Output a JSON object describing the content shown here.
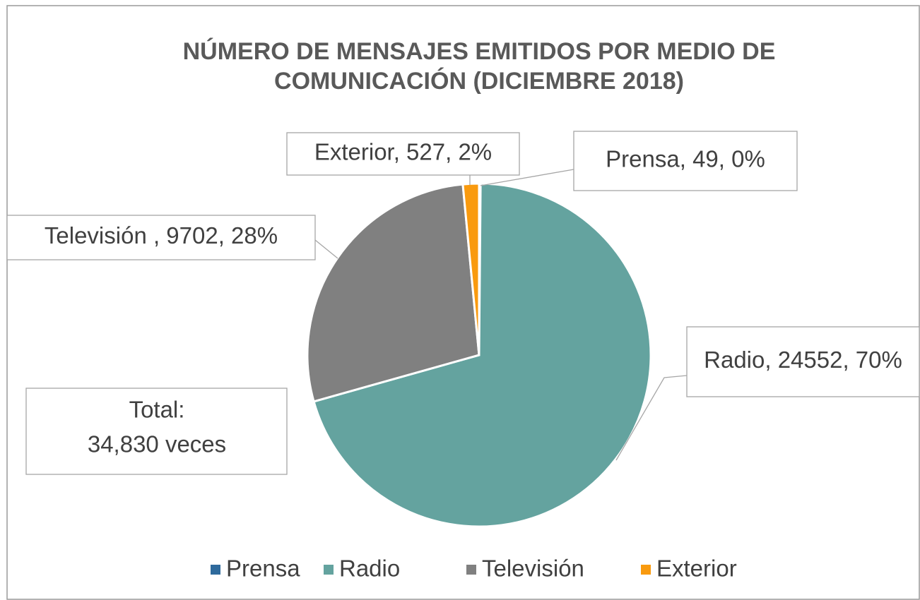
{
  "chart_data": {
    "type": "pie",
    "title": "NÚMERO DE MENSAJES EMITIDOS POR MEDIO DE COMUNICACIÓN (DICIEMBRE 2018)",
    "categories": [
      "Prensa",
      "Radio",
      "Televisión",
      "Exterior"
    ],
    "values": [
      49,
      24552,
      9702,
      527
    ],
    "value_labels": [
      "Prensa, 49, 0%",
      "Radio, 24552, 70%",
      "Televisión , 9702, 28%",
      "Exterior, 527, 2%"
    ],
    "colors": [
      "#2e6a9c",
      "#64a39f",
      "#808080",
      "#f99a0e"
    ],
    "annotation": [
      "Total:",
      "34,830 veces"
    ],
    "legend": "bottom"
  }
}
